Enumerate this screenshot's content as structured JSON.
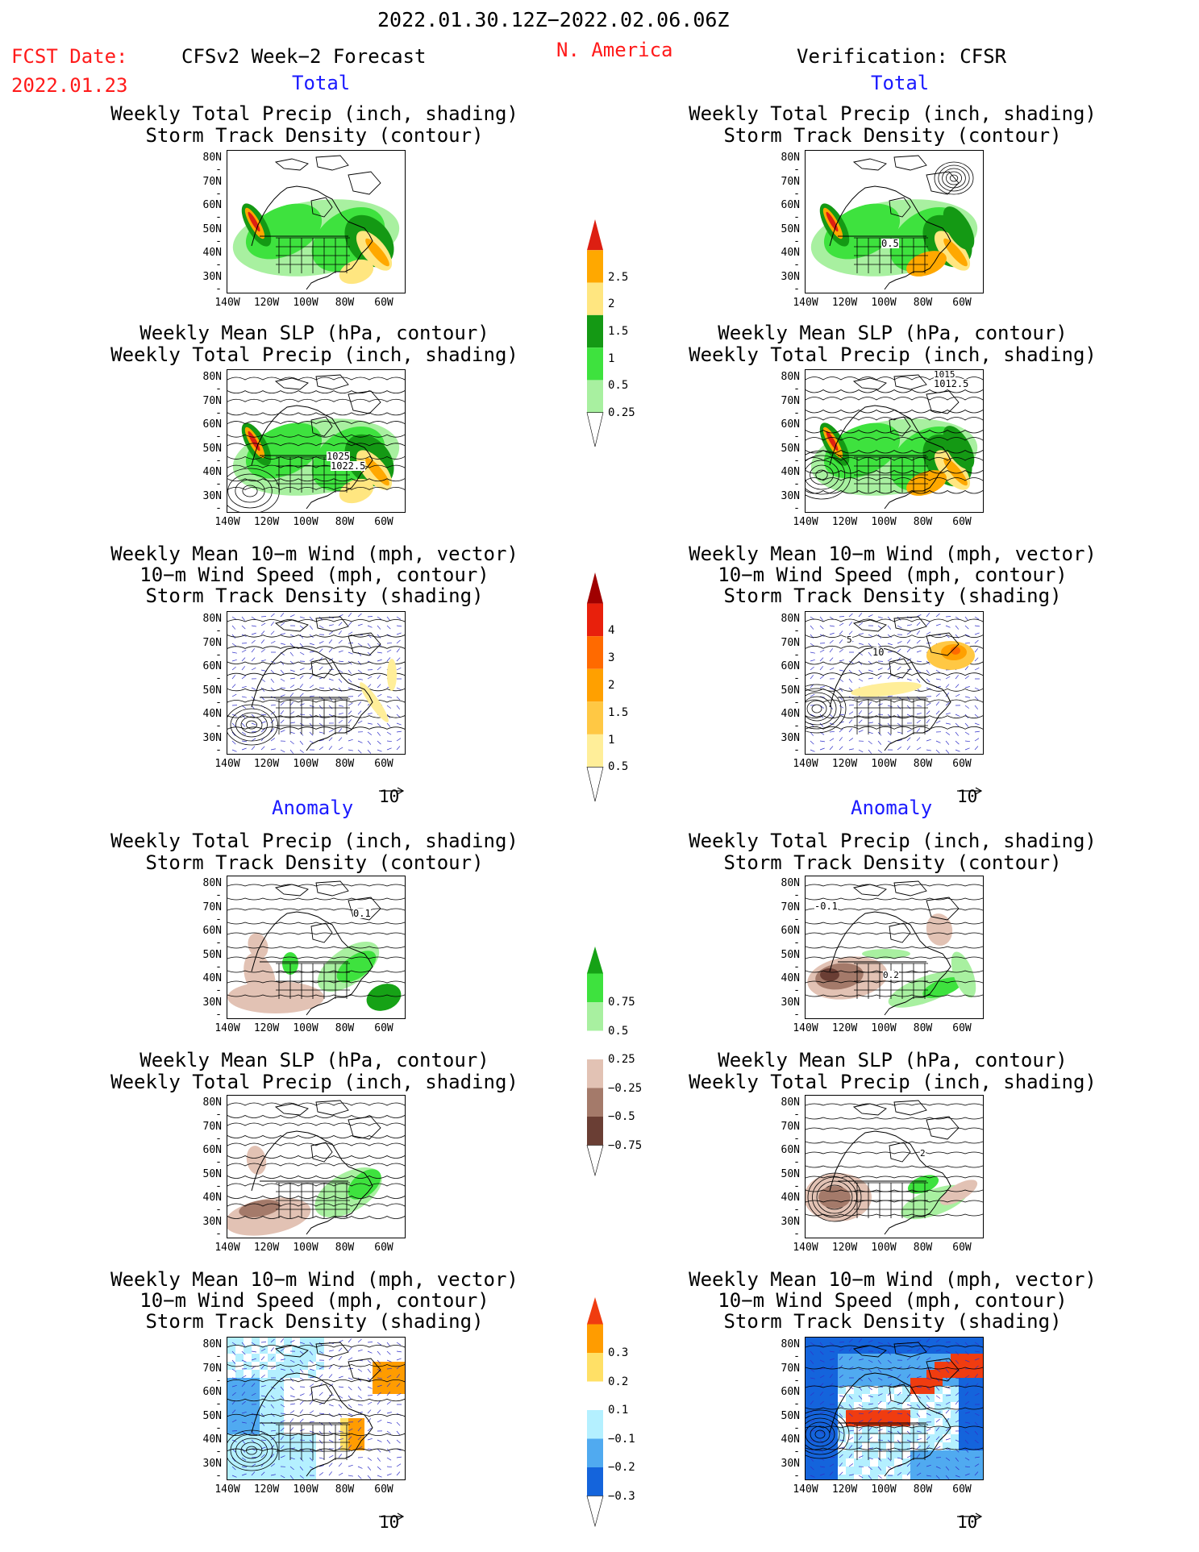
{
  "header": {
    "date_range": "2022.01.30.12Z−2022.02.06.06Z",
    "fcst_label": "FCST Date:",
    "fcst_date": "2022.01.23",
    "left_title": "CFSv2 Week−2 Forecast",
    "region": "N. America",
    "right_title": "Verification: CFSR"
  },
  "sections": {
    "total": "Total",
    "anomaly": "Anomaly"
  },
  "panel_titles": {
    "precip_track": [
      "Weekly Total Precip (inch, shading)",
      "Storm Track Density (contour)"
    ],
    "slp_precip": [
      "Weekly Mean SLP (hPa, contour)",
      "Weekly Total Precip (inch, shading)"
    ],
    "wind_track": [
      "Weekly Mean 10−m Wind (mph, vector)",
      "10−m Wind Speed (mph, contour)",
      "Storm Track Density (shading)"
    ]
  },
  "axes": {
    "lat_labels": [
      "80N",
      "70N",
      "60N",
      "50N",
      "40N",
      "30N"
    ],
    "lon_labels": [
      "140W",
      "120W",
      "100W",
      "80W",
      "60W"
    ]
  },
  "vector_reference": "10",
  "contour_labels": {
    "fc_slp_total": [
      "1025",
      "1022.5"
    ],
    "ver_precip_total": [
      "0.5"
    ],
    "ver_slp_total": [
      "1015",
      "1012.5"
    ],
    "ver_wind_total": [
      "10",
      "5"
    ],
    "fc_precip_anom": [
      "0.1"
    ],
    "ver_precip_anom": [
      "-0.1",
      "0.2"
    ],
    "ver_slp_anom": [
      "2"
    ]
  },
  "colorbars": {
    "precip_total": {
      "labels": [
        "2.5",
        "2",
        "1.5",
        "1",
        "0.5",
        "0.25"
      ],
      "colors": [
        "#dd1f12",
        "#ffa800",
        "#ffe680",
        "#149914",
        "#3ee23e",
        "#a8f0a0"
      ]
    },
    "track_total": {
      "labels": [
        "4",
        "3",
        "2",
        "1.5",
        "1",
        "0.5"
      ],
      "colors": [
        "#a00000",
        "#e8200c",
        "#ff6a00",
        "#ffa000",
        "#ffc844",
        "#ffee99"
      ]
    },
    "precip_anom": {
      "labels": [
        "0.75",
        "0.5",
        "0.25",
        "−0.25",
        "−0.5",
        "−0.75"
      ],
      "colors": [
        "#16a216",
        "#3ee23e",
        "#a8f0a0",
        "#ffffff",
        "#e2c2b4",
        "#a47a6a",
        "#6a3e34"
      ]
    },
    "track_anom": {
      "labels": [
        "0.3",
        "0.2",
        "0.1",
        "−0.1",
        "−0.2",
        "−0.3"
      ],
      "colors": [
        "#f03c10",
        "#ff9c00",
        "#ffe066",
        "#ffffff",
        "#b4f0ff",
        "#50aaf0",
        "#1464dc"
      ]
    }
  }
}
